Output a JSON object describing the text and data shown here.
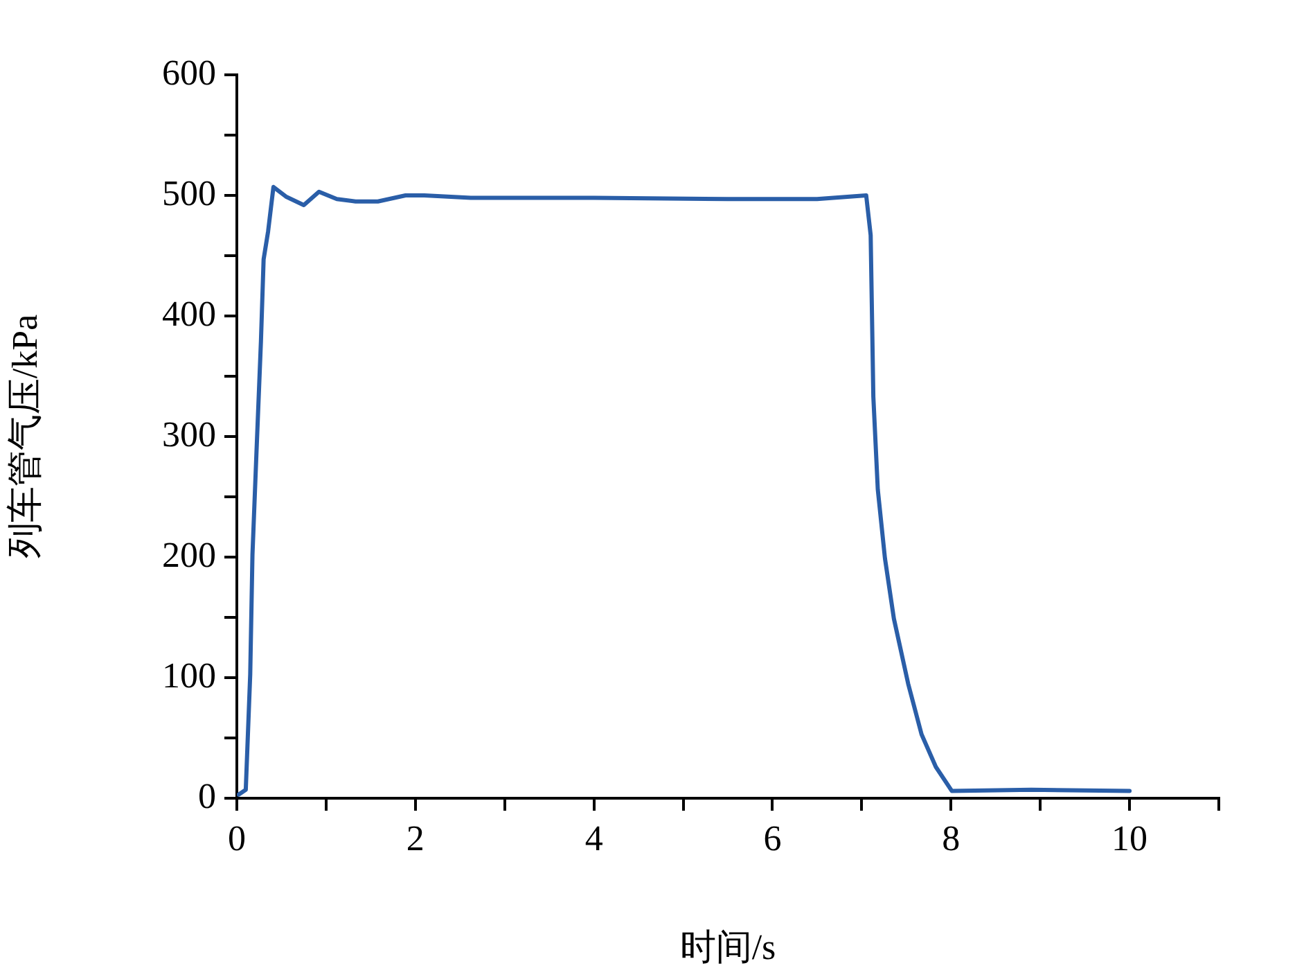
{
  "chart_data": {
    "type": "line",
    "xlabel": "时间/s",
    "ylabel": "列车管气压/kPa",
    "xlim": [
      0,
      11
    ],
    "xticks": [
      0,
      {
        "value": 1,
        "label": null
      },
      2,
      {
        "value": 3,
        "label": null
      },
      4,
      {
        "value": 5,
        "label": null
      },
      6,
      {
        "value": 7,
        "label": null
      },
      8,
      {
        "value": 9,
        "label": null
      },
      10,
      {
        "value": 11,
        "label": null
      }
    ],
    "ylim": [
      0,
      600
    ],
    "yticks": [
      0,
      {
        "value": 50,
        "label": null
      },
      100,
      {
        "value": 150,
        "label": null
      },
      200,
      {
        "value": 250,
        "label": null
      },
      300,
      {
        "value": 350,
        "label": null
      },
      400,
      {
        "value": 450,
        "label": null
      },
      500,
      {
        "value": 550,
        "label": null
      },
      600
    ],
    "grid": false,
    "legend": false,
    "marker": "none",
    "line_style": "solid",
    "x": [
      0.02,
      0.1,
      0.15,
      0.175,
      0.22,
      0.27,
      0.3,
      0.35,
      0.41,
      0.55,
      0.75,
      0.92,
      1.12,
      1.33,
      1.58,
      1.89,
      2.1,
      2.62,
      4,
      5.5,
      6.5,
      7.05,
      7.1,
      7.13,
      7.18,
      7.26,
      7.36,
      7.52,
      7.67,
      7.83,
      8.01,
      8.9,
      10
    ],
    "series": [
      {
        "color": "#2a5ea8",
        "values": [
          3,
          7,
          103,
          202,
          287,
          379,
          447,
          470,
          507,
          499,
          492,
          503,
          497,
          495,
          495,
          500,
          500,
          498,
          498,
          497,
          497,
          500,
          467,
          333,
          256,
          199,
          149,
          95,
          53,
          26,
          6,
          7,
          6
        ]
      }
    ]
  }
}
